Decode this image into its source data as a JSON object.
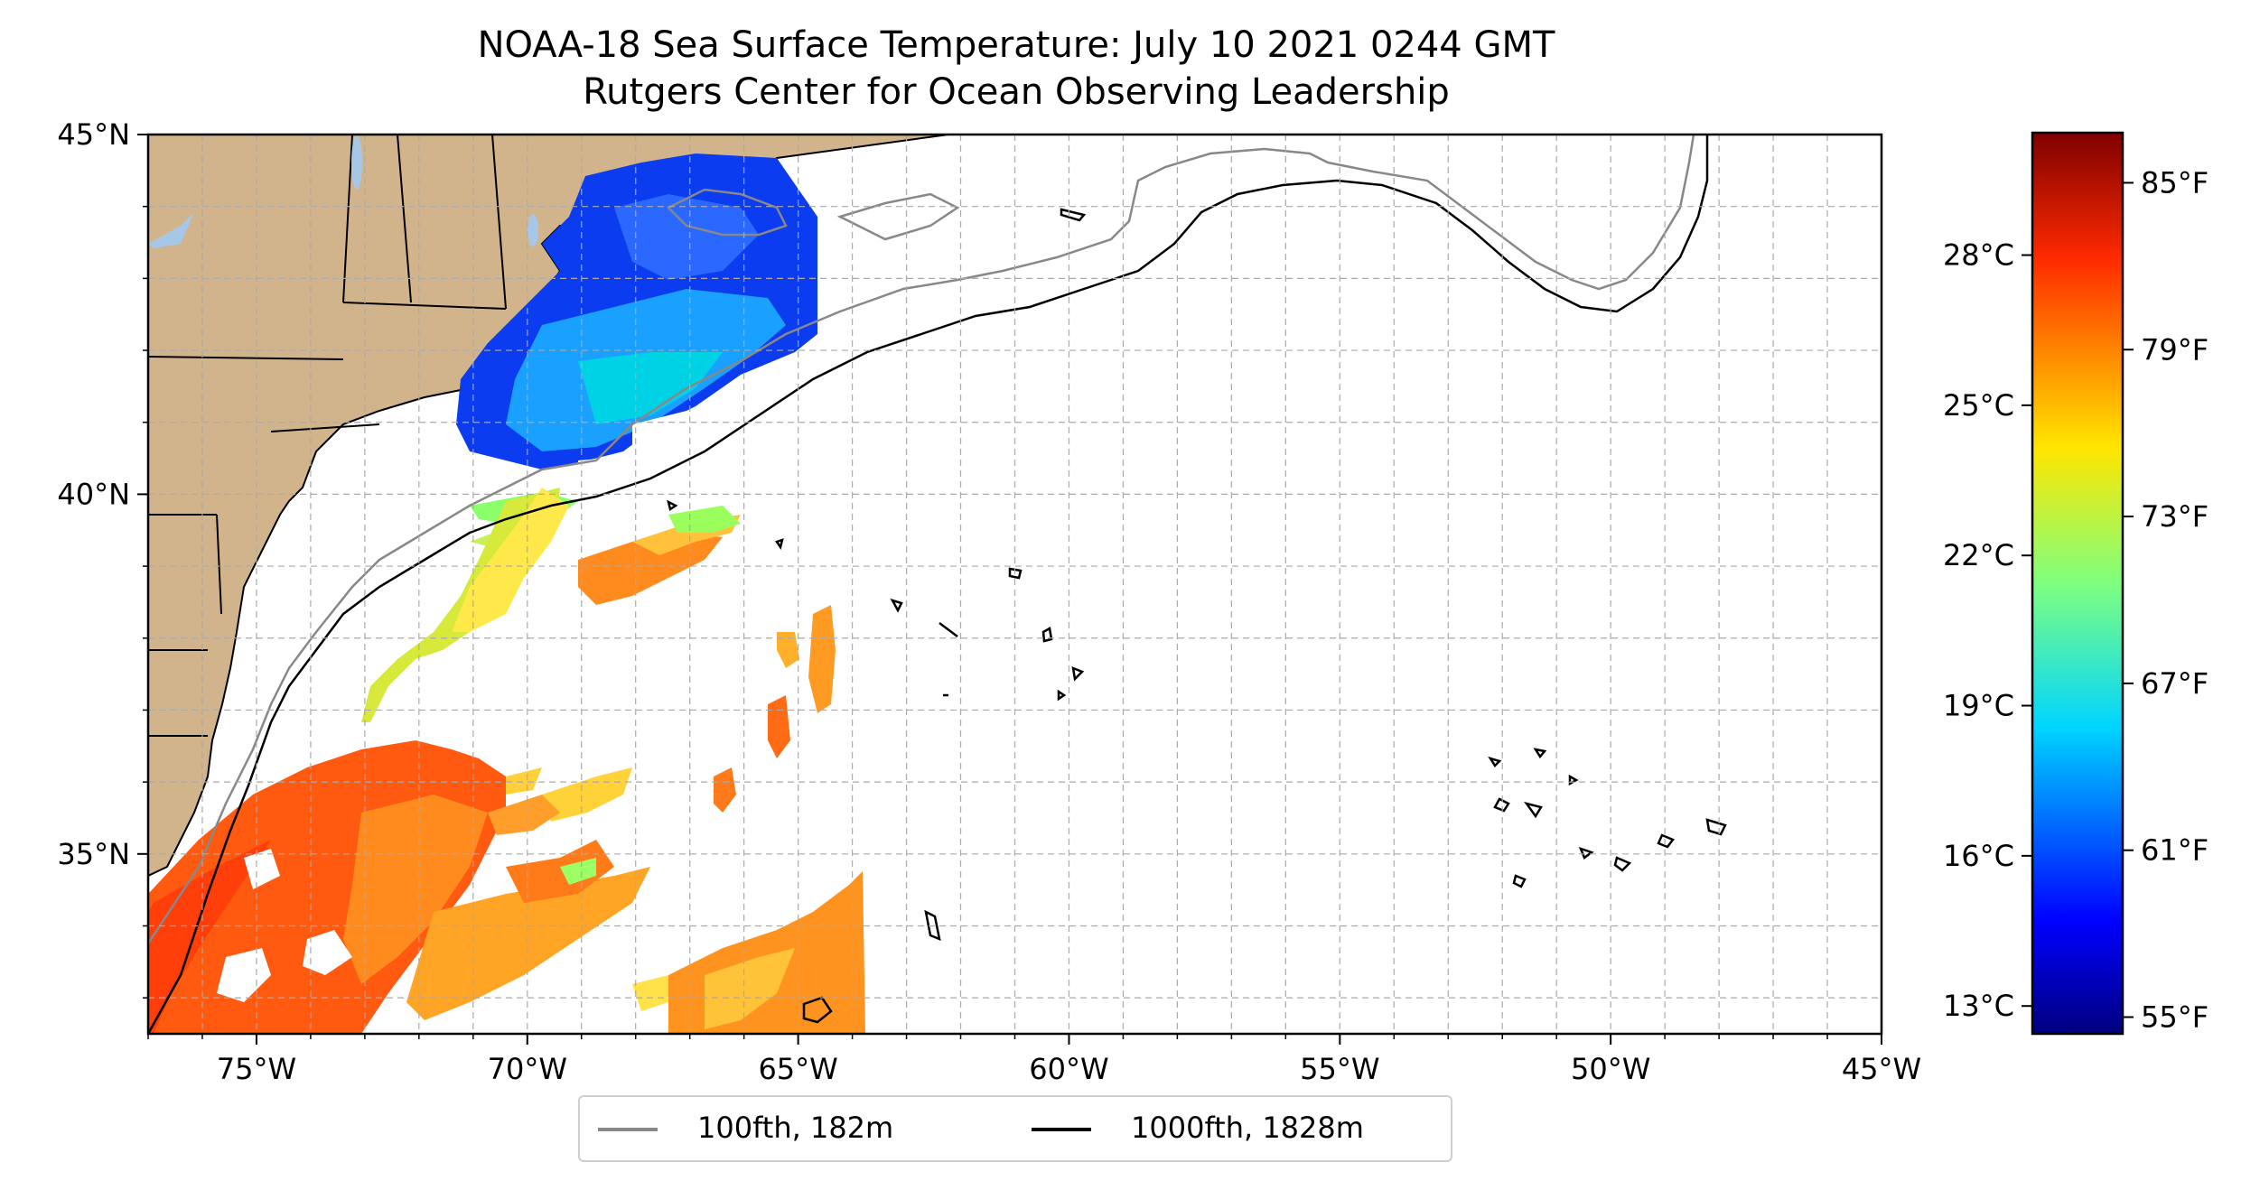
{
  "title": "NOAA-18 Sea Surface Temperature: July 10 2021 0244 GMT",
  "subtitle": "Rutgers Center for Ocean Observing Leadership",
  "map": {
    "lon_range": [
      -77,
      -45
    ],
    "lat_range": [
      32.5,
      45
    ],
    "lon_ticks": [
      {
        "value": -75,
        "label": "75°W"
      },
      {
        "value": -70,
        "label": "70°W"
      },
      {
        "value": -65,
        "label": "65°W"
      },
      {
        "value": -60,
        "label": "60°W"
      },
      {
        "value": -55,
        "label": "55°W"
      },
      {
        "value": -50,
        "label": "50°W"
      },
      {
        "value": -45,
        "label": "45°W"
      }
    ],
    "lat_ticks": [
      {
        "value": 45,
        "label": "45°N"
      },
      {
        "value": 40,
        "label": "40°N"
      },
      {
        "value": 35,
        "label": "35°N"
      }
    ],
    "gridlines": "dashed",
    "colors": {
      "land": "#d2b48c",
      "lakes": "#a6c8e6",
      "coast": "#000000",
      "isobath_100fth": "#888888",
      "isobath_1000fth": "#000000"
    }
  },
  "colorbar": {
    "colormap": "jet",
    "celsius_ticks": [
      {
        "value": 28,
        "label": "28°C"
      },
      {
        "value": 25,
        "label": "25°C"
      },
      {
        "value": 22,
        "label": "22°C"
      },
      {
        "value": 19,
        "label": "19°C"
      },
      {
        "value": 16,
        "label": "16°C"
      },
      {
        "value": 13,
        "label": "13°C"
      }
    ],
    "fahrenheit_ticks": [
      {
        "value": 85,
        "label": "85°F"
      },
      {
        "value": 79,
        "label": "79°F"
      },
      {
        "value": 73,
        "label": "73°F"
      },
      {
        "value": 67,
        "label": "67°F"
      },
      {
        "value": 61,
        "label": "61°F"
      },
      {
        "value": 55,
        "label": "55°F"
      }
    ],
    "range_f": [
      54.4,
      86.8
    ]
  },
  "legend": {
    "entries": [
      {
        "label": "100fth, 182m",
        "color": "#888888"
      },
      {
        "label": "1000fth, 1828m",
        "color": "#000000"
      }
    ]
  }
}
